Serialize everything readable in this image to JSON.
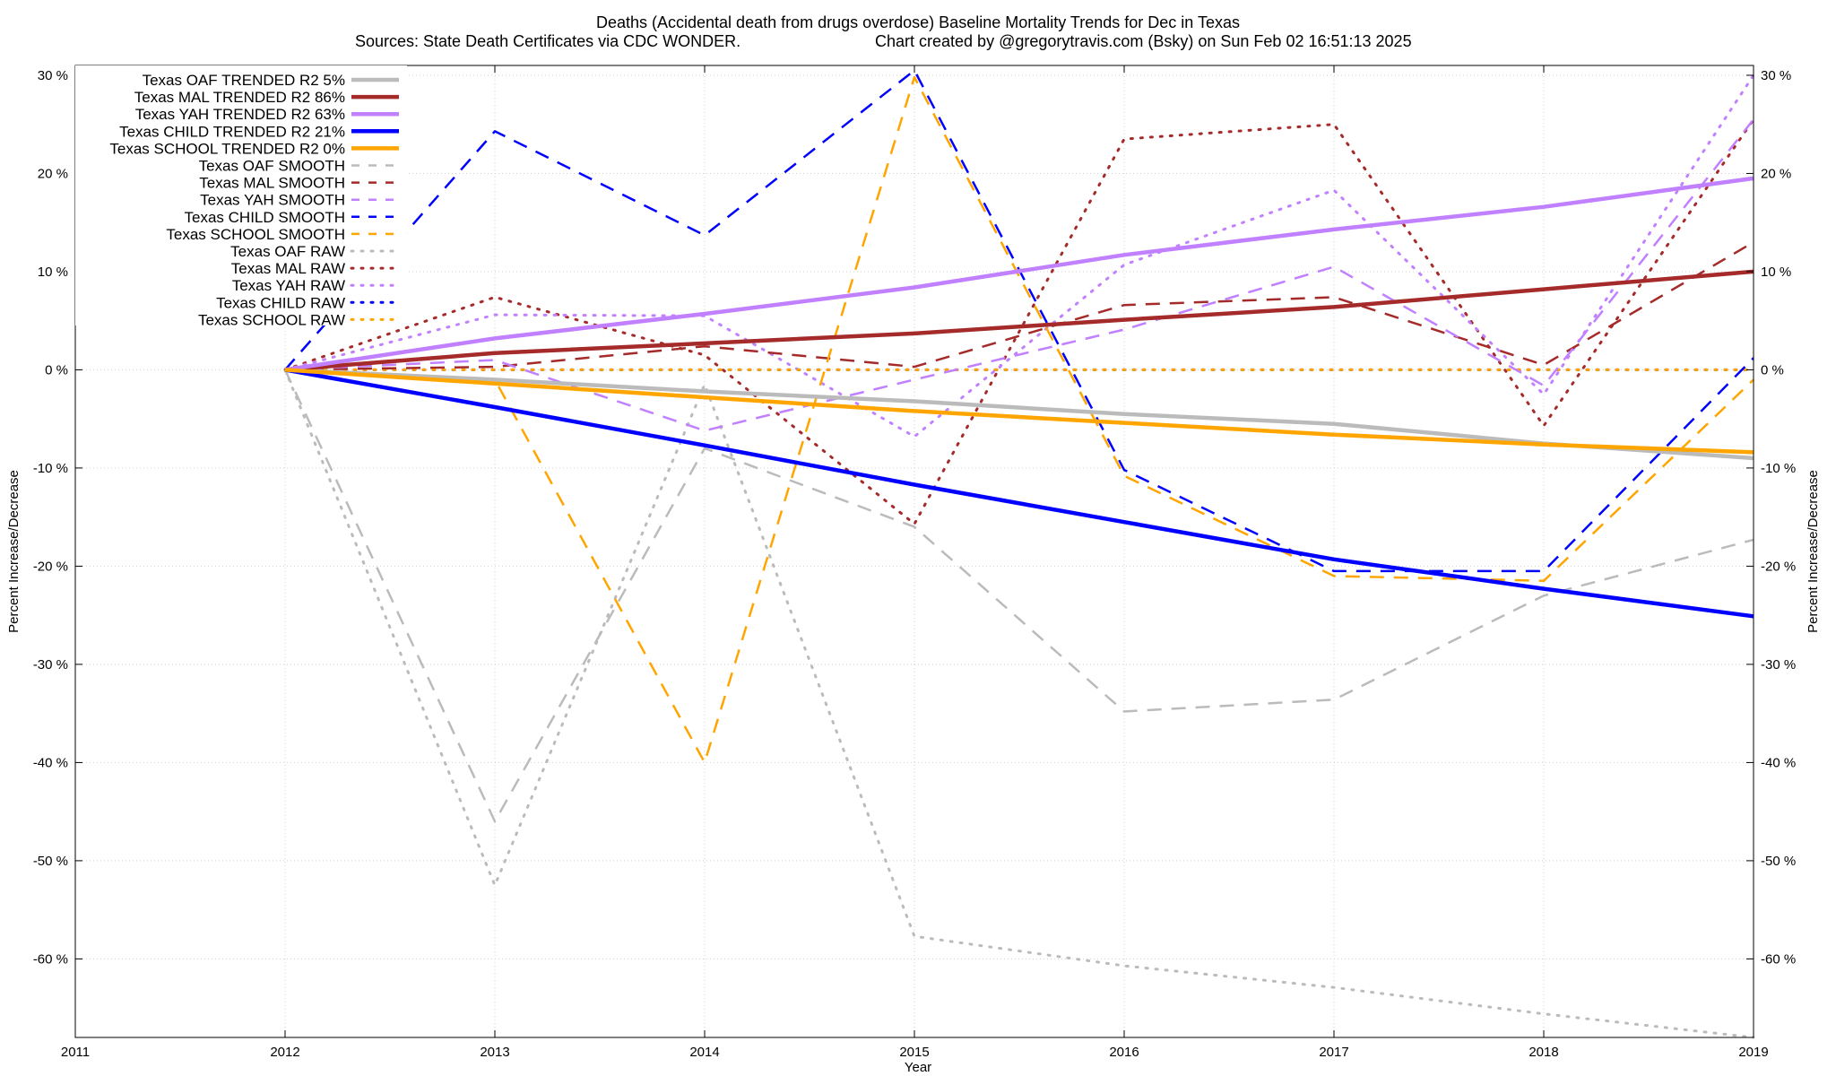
{
  "chart_data": {
    "type": "line",
    "title": "Deaths (Accidental death from drugs overdose)  Baseline Mortality Trends for Dec in Texas",
    "subtitle_left": "Sources: State Death Certificates via CDC WONDER.",
    "subtitle_right": "Chart created by @gregorytravis.com (Bsky) on Sun Feb 02 16:51:13 2025",
    "xlabel": "Year",
    "ylabel_left": "Percent Increase/Decrease",
    "ylabel_right": "Percent Increase/Decrease",
    "xlim": [
      2011,
      2019
    ],
    "ylim": [
      -68,
      31
    ],
    "xticks": [
      "2011",
      "2012",
      "2013",
      "2014",
      "2015",
      "2016",
      "2017",
      "2018",
      "2019"
    ],
    "yticks": [
      "30 %",
      "20 %",
      "10 %",
      "0 %",
      "-10 %",
      "-20 %",
      "-30 %",
      "-40 %",
      "-50 %",
      "-60 %"
    ],
    "legend_position": "top-left",
    "grid": true,
    "series": [
      {
        "name": "Texas OAF TRENDED R2  5%",
        "style": "solid",
        "color": "#bbbbbb",
        "x": [
          2012,
          2013,
          2014,
          2015,
          2016,
          2017,
          2018,
          2019
        ],
        "y": [
          0,
          -1.0,
          -2.2,
          -3.2,
          -4.5,
          -5.5,
          -7.5,
          -9.0
        ]
      },
      {
        "name": "Texas MAL TRENDED R2  86%",
        "style": "solid",
        "color": "#a52a2a",
        "x": [
          2012,
          2013,
          2014,
          2015,
          2016,
          2017,
          2018,
          2019
        ],
        "y": [
          0,
          1.7,
          2.7,
          3.7,
          5.1,
          6.4,
          8.2,
          10.0
        ]
      },
      {
        "name": "Texas YAH TRENDED R2  63%",
        "style": "solid",
        "color": "#c080ff",
        "x": [
          2012,
          2013,
          2014,
          2015,
          2016,
          2017,
          2018,
          2019
        ],
        "y": [
          0,
          3.2,
          5.7,
          8.4,
          11.7,
          14.3,
          16.6,
          19.5
        ]
      },
      {
        "name": "Texas CHILD TRENDED R2  21%",
        "style": "solid",
        "color": "#0000ff",
        "x": [
          2012,
          2013,
          2014,
          2015,
          2016,
          2017,
          2018,
          2019
        ],
        "y": [
          0,
          -3.8,
          -7.7,
          -11.7,
          -15.5,
          -19.3,
          -22.3,
          -25.1
        ]
      },
      {
        "name": "Texas SCHOOL TRENDED R2  0%",
        "style": "solid",
        "color": "#ffa500",
        "x": [
          2012,
          2013,
          2014,
          2015,
          2016,
          2017,
          2018,
          2019
        ],
        "y": [
          0,
          -1.4,
          -2.8,
          -4.2,
          -5.4,
          -6.6,
          -7.6,
          -8.4
        ]
      },
      {
        "name": "Texas OAF SMOOTH",
        "style": "dashed",
        "color": "#bbbbbb",
        "x": [
          2012,
          2013,
          2014,
          2015,
          2016,
          2017,
          2018,
          2019
        ],
        "y": [
          0,
          -46.0,
          -8.0,
          -16.0,
          -34.8,
          -33.6,
          -23.0,
          -17.3
        ]
      },
      {
        "name": "Texas MAL SMOOTH",
        "style": "dashed",
        "color": "#a52a2a",
        "x": [
          2012,
          2013,
          2014,
          2015,
          2016,
          2017,
          2018,
          2019
        ],
        "y": [
          0,
          0.3,
          2.4,
          0.3,
          6.6,
          7.4,
          0.5,
          13.0
        ]
      },
      {
        "name": "Texas YAH SMOOTH",
        "style": "dashed",
        "color": "#c080ff",
        "x": [
          2012,
          2013,
          2014,
          2015,
          2016,
          2017,
          2018,
          2019
        ],
        "y": [
          0,
          1.0,
          -6.2,
          -1.0,
          4.1,
          10.5,
          -1.6,
          25.5
        ]
      },
      {
        "name": "Texas CHILD SMOOTH",
        "style": "dashed",
        "color": "#0000ff",
        "x": [
          2012,
          2013,
          2014,
          2015,
          2016,
          2017,
          2018,
          2019
        ],
        "y": [
          0,
          24.3,
          13.7,
          30.5,
          -10.2,
          -20.5,
          -20.5,
          1.2
        ]
      },
      {
        "name": "Texas SCHOOL SMOOTH",
        "style": "dashed",
        "color": "#ffa500",
        "x": [
          2012,
          2013,
          2014,
          2015,
          2016,
          2017,
          2018,
          2019
        ],
        "y": [
          0,
          -1.0,
          -40.0,
          29.8,
          -10.8,
          -21.0,
          -21.5,
          -1.0
        ]
      },
      {
        "name": "Texas OAF RAW",
        "style": "dotted",
        "color": "#bbbbbb",
        "x": [
          2012,
          2013,
          2014,
          2015,
          2016,
          2017,
          2018,
          2019
        ],
        "y": [
          0,
          -52.5,
          -1.5,
          -57.7,
          -60.7,
          -62.9,
          -65.6,
          -68.0
        ]
      },
      {
        "name": "Texas MAL RAW",
        "style": "dotted",
        "color": "#a52a2a",
        "x": [
          2012,
          2013,
          2014,
          2015,
          2016,
          2017,
          2018,
          2019
        ],
        "y": [
          0,
          7.4,
          1.5,
          -15.7,
          23.5,
          25.0,
          -5.7,
          25.5
        ]
      },
      {
        "name": "Texas YAH RAW",
        "style": "dotted",
        "color": "#c080ff",
        "x": [
          2012,
          2013,
          2014,
          2015,
          2016,
          2017,
          2018,
          2019
        ],
        "y": [
          0,
          5.6,
          5.5,
          -6.8,
          10.7,
          18.3,
          -2.5,
          30.0
        ]
      },
      {
        "name": "Texas CHILD RAW",
        "style": "dotted",
        "color": "#0000ff",
        "x": [
          2012,
          2013,
          2014,
          2015,
          2016,
          2017,
          2018,
          2019
        ],
        "y": [
          0,
          0,
          0,
          0,
          0,
          0,
          0,
          0
        ]
      },
      {
        "name": "Texas SCHOOL RAW",
        "style": "dotted",
        "color": "#ffa500",
        "x": [
          2012,
          2013,
          2014,
          2015,
          2016,
          2017,
          2018,
          2019
        ],
        "y": [
          0,
          0,
          0,
          0,
          0,
          0,
          0,
          0
        ]
      }
    ]
  }
}
